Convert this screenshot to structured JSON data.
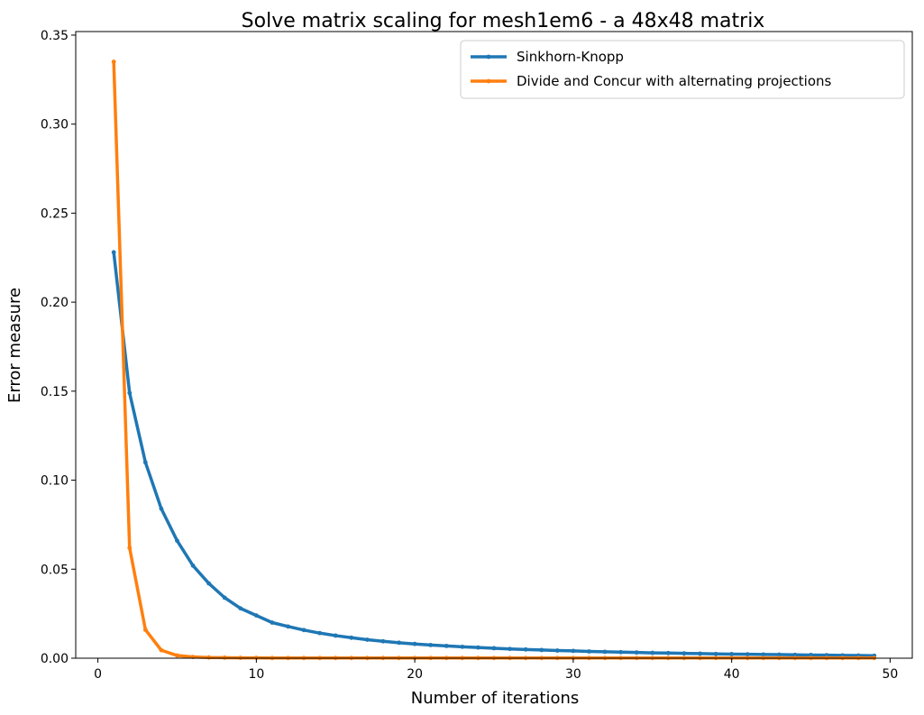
{
  "chart_data": {
    "type": "line",
    "title": "Solve matrix scaling for mesh1em6 - a 48x48 matrix",
    "xlabel": "Number of iterations",
    "ylabel": "Error measure",
    "xlim": [
      -1.4,
      51.4
    ],
    "ylim": [
      0,
      0.352
    ],
    "xticks": [
      0,
      10,
      20,
      30,
      40,
      50
    ],
    "xtick_labels": [
      "0",
      "10",
      "20",
      "30",
      "40",
      "50"
    ],
    "yticks": [
      0,
      0.05,
      0.1,
      0.15,
      0.2,
      0.25,
      0.3,
      0.35
    ],
    "ytick_labels": [
      "0.00",
      "0.05",
      "0.10",
      "0.15",
      "0.20",
      "0.25",
      "0.30",
      "0.35"
    ],
    "grid": false,
    "legend_position": "top-right",
    "series": [
      {
        "name": "Sinkhorn-Knopp",
        "color": "#1f77b4",
        "x": [
          1,
          2,
          3,
          4,
          5,
          6,
          7,
          8,
          9,
          10,
          11,
          12,
          13,
          14,
          15,
          16,
          17,
          18,
          19,
          20,
          21,
          22,
          23,
          24,
          25,
          26,
          27,
          28,
          29,
          30,
          31,
          32,
          33,
          34,
          35,
          36,
          37,
          38,
          39,
          40,
          41,
          42,
          43,
          44,
          45,
          46,
          47,
          48,
          49
        ],
        "values": [
          0.228,
          0.149,
          0.11,
          0.084,
          0.066,
          0.052,
          0.042,
          0.034,
          0.028,
          0.024,
          0.02,
          0.0178,
          0.0158,
          0.0141,
          0.0127,
          0.0115,
          0.0104,
          0.0095,
          0.0087,
          0.008,
          0.0074,
          0.0069,
          0.0064,
          0.006,
          0.0056,
          0.0052,
          0.0049,
          0.0046,
          0.0043,
          0.0041,
          0.0038,
          0.0036,
          0.0034,
          0.0032,
          0.003,
          0.0029,
          0.0027,
          0.0026,
          0.0024,
          0.0023,
          0.0022,
          0.0021,
          0.002,
          0.0019,
          0.0018,
          0.0017,
          0.0016,
          0.0015,
          0.0014
        ]
      },
      {
        "name": "Divide and Concur with alternating projections",
        "color": "#ff7f0e",
        "x": [
          1,
          2,
          3,
          4,
          5,
          6,
          7,
          8,
          9,
          10,
          11,
          12,
          13,
          14,
          15,
          16,
          17,
          18,
          19,
          20,
          21,
          22,
          23,
          24,
          25,
          26,
          27,
          28,
          29,
          30,
          31,
          32,
          33,
          34,
          35,
          36,
          37,
          38,
          39,
          40,
          41,
          42,
          43,
          44,
          45,
          46,
          47,
          48,
          49
        ],
        "values": [
          0.335,
          0.062,
          0.016,
          0.0045,
          0.0015,
          0.0007,
          0.0004,
          0.0003,
          0.0002,
          0.0002,
          0.0001,
          0.0001,
          0.0001,
          0.0001,
          0.0001,
          0.0001,
          0.0001,
          0.0001,
          0.0001,
          0.0001,
          0.0001,
          0.0001,
          0.0001,
          0.0001,
          0.0001,
          0.0001,
          0.0001,
          0.0001,
          0.0001,
          0.0001,
          0.0001,
          0.0001,
          0.0001,
          0.0001,
          0.0001,
          0.0001,
          0.0001,
          0.0001,
          0.0001,
          0.0001,
          0.0001,
          0.0001,
          0.0001,
          0.0001,
          0.0001,
          0.0001,
          0.0001,
          0.0001,
          0.0001
        ]
      }
    ]
  }
}
